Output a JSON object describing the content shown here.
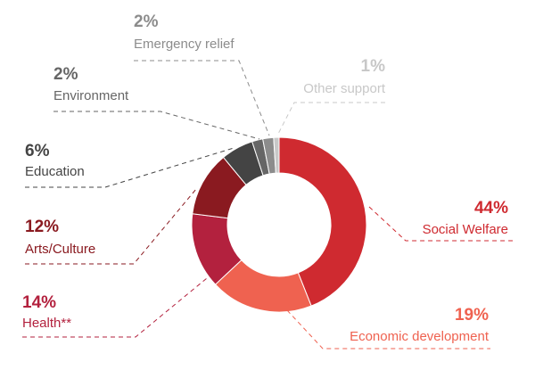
{
  "chart_data": {
    "type": "pie",
    "categories": [
      "Social Welfare",
      "Economic development",
      "Health**",
      "Arts/Culture",
      "Education",
      "Environment",
      "Emergency relief",
      "Other support"
    ],
    "values": [
      44,
      19,
      14,
      12,
      6,
      2,
      2,
      1
    ],
    "value_labels": [
      "44%",
      "19%",
      "14%",
      "12%",
      "6%",
      "2%",
      "2%",
      "1%"
    ],
    "colors": [
      "#cf2a30",
      "#ef6250",
      "#b3213e",
      "#8a1a20",
      "#444444",
      "#666666",
      "#8c8c8c",
      "#c8c8c8"
    ]
  }
}
